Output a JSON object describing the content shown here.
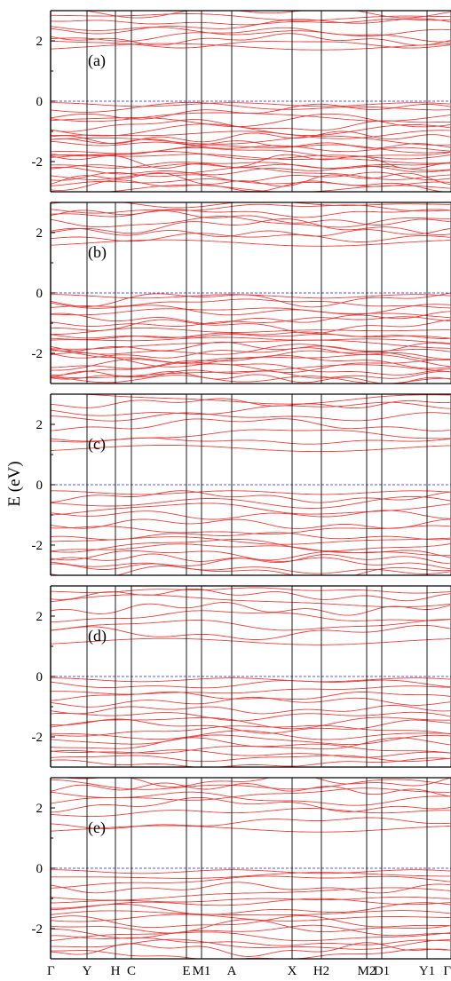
{
  "colors": {
    "band": "#e8413f",
    "fermi": "#5a5adf",
    "axis": "#000000",
    "background": "#ffffff"
  },
  "chart_data": {
    "type": "line",
    "title": "",
    "ylabel": "E (eV)",
    "xlabel": "",
    "kpoints": [
      "Γ",
      "Y",
      "H",
      "C",
      "E",
      "M1",
      "A",
      "X",
      "H2",
      "M2",
      "D1",
      "Y1",
      "Γ"
    ],
    "ylim": [
      -3,
      3
    ],
    "yticks": [
      "2",
      "0",
      "-2"
    ],
    "fermi_level": 0,
    "legend": "none",
    "grid": false,
    "panels": [
      {
        "label": "(a)",
        "conduction_edge": 1.7,
        "conduction_lines": [
          1.7,
          1.9,
          2.05,
          2.2,
          2.35,
          2.5,
          2.65,
          2.8,
          2.95
        ],
        "valence_edge": -0.05,
        "valence_lines": [
          -0.05,
          -0.2,
          -0.35,
          -0.5,
          -0.65,
          -0.8,
          -0.95,
          -1.1,
          -1.2,
          -1.3,
          -1.4,
          -1.5,
          -1.6,
          -1.7,
          -1.8,
          -1.9,
          -2.0,
          -2.1,
          -2.2,
          -2.3,
          -2.4,
          -2.5,
          -2.6,
          -2.7,
          -2.8,
          -2.9
        ]
      },
      {
        "label": "(b)",
        "conduction_edge": 1.55,
        "conduction_lines": [
          1.55,
          1.85,
          2.05,
          2.2,
          2.35,
          2.5,
          2.65,
          2.8,
          2.95
        ],
        "valence_edge": -0.05,
        "valence_lines": [
          -0.05,
          -0.2,
          -0.35,
          -0.5,
          -0.65,
          -0.8,
          -0.95,
          -1.1,
          -1.25,
          -1.4,
          -1.5,
          -1.6,
          -1.7,
          -1.8,
          -1.9,
          -2.0,
          -2.1,
          -2.2,
          -2.3,
          -2.4,
          -2.5,
          -2.6,
          -2.7,
          -2.8,
          -2.9
        ]
      },
      {
        "label": "(c)",
        "conduction_edge": 1.1,
        "conduction_lines": [
          1.1,
          1.45,
          1.65,
          2.0,
          2.25,
          2.5,
          2.7,
          2.85
        ],
        "valence_edge": -0.2,
        "valence_lines": [
          -0.2,
          -0.4,
          -0.6,
          -0.8,
          -1.0,
          -1.3,
          -1.5,
          -1.7,
          -1.85,
          -2.0,
          -2.15,
          -2.3,
          -2.45,
          -2.6,
          -2.75,
          -2.9
        ]
      },
      {
        "label": "(d)",
        "conduction_edge": 1.05,
        "conduction_lines": [
          1.05,
          1.45,
          1.7,
          2.0,
          2.25,
          2.5,
          2.7,
          2.85
        ],
        "valence_edge": -0.05,
        "valence_lines": [
          -0.05,
          -0.25,
          -0.45,
          -0.65,
          -0.85,
          -1.1,
          -1.3,
          -1.5,
          -1.65,
          -1.8,
          -1.95,
          -2.1,
          -2.25,
          -2.4,
          -2.55,
          -2.7,
          -2.85
        ]
      },
      {
        "label": "(e)",
        "conduction_edge": 1.2,
        "conduction_lines": [
          1.2,
          1.5,
          1.8,
          2.1,
          2.3,
          2.45,
          2.6,
          2.75,
          2.9
        ],
        "valence_edge": -0.05,
        "valence_lines": [
          -0.05,
          -0.25,
          -0.45,
          -0.65,
          -0.85,
          -1.05,
          -1.2,
          -1.35,
          -1.5,
          -1.65,
          -1.8,
          -1.95,
          -2.1,
          -2.25,
          -2.4,
          -2.55,
          -2.7,
          -2.85
        ]
      }
    ]
  }
}
